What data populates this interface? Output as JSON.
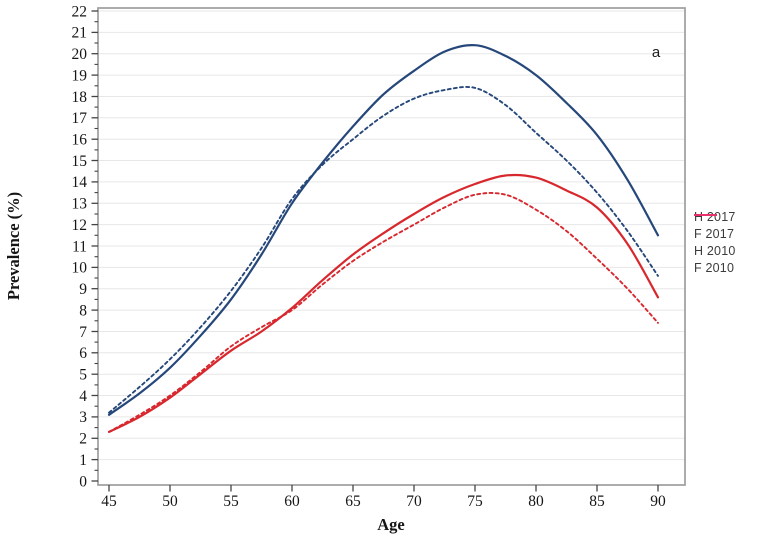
{
  "figure": {
    "panel_label": "a",
    "xlabel": "Age",
    "ylabel": "Prevalence (%)"
  },
  "chart_data": {
    "type": "line",
    "title": "",
    "xlabel": "Age",
    "ylabel": "Prevalence (%)",
    "xlim": [
      44,
      92.3
    ],
    "ylim": [
      0,
      22.2
    ],
    "grid": "horizontal",
    "grid_color": "#e7e7e7",
    "border_color": "#9d9d9d",
    "tick_color": "#444444",
    "legend_position": "right-outside",
    "x_ticks": [
      45,
      50,
      55,
      60,
      65,
      70,
      75,
      80,
      85,
      90
    ],
    "y_ticks": [
      0,
      1,
      2,
      3,
      4,
      5,
      6,
      7,
      8,
      9,
      10,
      11,
      12,
      13,
      14,
      15,
      16,
      17,
      18,
      19,
      20,
      21,
      22
    ],
    "y_minor_tick_step": 0.5,
    "x": [
      45,
      47.5,
      50,
      52.5,
      55,
      57.5,
      60,
      62.5,
      65,
      67.5,
      70,
      72.5,
      75,
      77.5,
      80,
      82.5,
      85,
      87.5,
      90
    ],
    "series": [
      {
        "name": "H 2017",
        "style": "solid",
        "color": "#25477a",
        "legend_color": "#2e5b99",
        "values": [
          3.1,
          4.1,
          5.3,
          6.8,
          8.5,
          10.6,
          13.0,
          14.9,
          16.6,
          18.1,
          19.2,
          20.1,
          20.4,
          19.9,
          19.0,
          17.7,
          16.2,
          14.1,
          11.5
        ]
      },
      {
        "name": "F 2017",
        "style": "solid",
        "color": "#d7282e",
        "legend_color": "#e8316b",
        "values": [
          2.3,
          3.0,
          3.9,
          5.0,
          6.1,
          7.0,
          8.1,
          9.4,
          10.6,
          11.6,
          12.5,
          13.3,
          13.9,
          14.3,
          14.2,
          13.6,
          12.8,
          11.1,
          8.6
        ]
      },
      {
        "name": "H 2010",
        "style": "dashed",
        "color": "#25477a",
        "legend_color": "#2e5b99",
        "values": [
          3.2,
          4.4,
          5.7,
          7.2,
          8.9,
          10.9,
          13.2,
          14.8,
          16.0,
          17.1,
          17.9,
          18.3,
          18.4,
          17.6,
          16.3,
          15.0,
          13.5,
          11.7,
          9.6
        ]
      },
      {
        "name": "F 2010",
        "style": "dashed",
        "color": "#d7282e",
        "legend_color": "#e8316b",
        "values": [
          2.3,
          3.1,
          4.0,
          5.1,
          6.3,
          7.2,
          8.0,
          9.2,
          10.3,
          11.2,
          12.0,
          12.8,
          13.4,
          13.4,
          12.7,
          11.7,
          10.4,
          9.0,
          7.4
        ]
      }
    ]
  }
}
